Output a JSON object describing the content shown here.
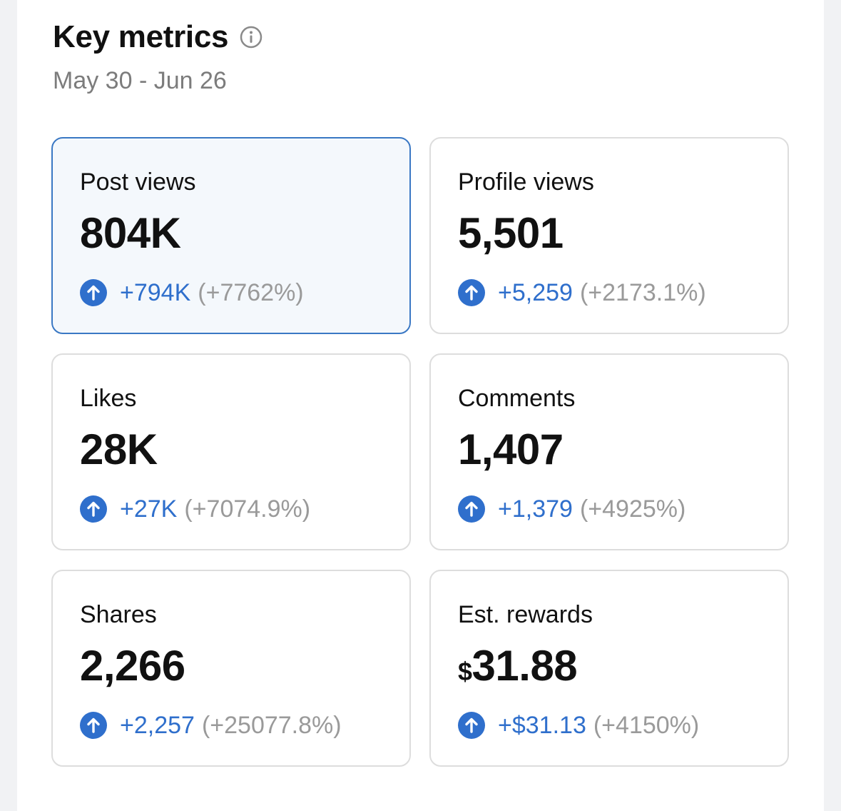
{
  "header": {
    "title": "Key metrics",
    "date_range": "May 30 - Jun 26"
  },
  "colors": {
    "accent": "#2f6fcc",
    "selected_border": "#3a78c4",
    "selected_bg": "#f4f8fc",
    "muted_text": "#9a9a9a"
  },
  "metrics": [
    {
      "label": "Post views",
      "value": "804K",
      "delta": "+794K",
      "percent": "(+7762%)",
      "selected": true
    },
    {
      "label": "Profile views",
      "value": "5,501",
      "delta": "+5,259",
      "percent": "(+2173.1%)"
    },
    {
      "label": "Likes",
      "value": "28K",
      "delta": "+27K",
      "percent": "(+7074.9%)"
    },
    {
      "label": "Comments",
      "value": "1,407",
      "delta": "+1,379",
      "percent": "(+4925%)"
    },
    {
      "label": "Shares",
      "value": "2,266",
      "delta": "+2,257",
      "percent": "(+25077.8%)"
    },
    {
      "label": "Est. rewards",
      "currency": "$",
      "value": "31.88",
      "delta": "+$31.13",
      "percent": "(+4150%)"
    }
  ]
}
